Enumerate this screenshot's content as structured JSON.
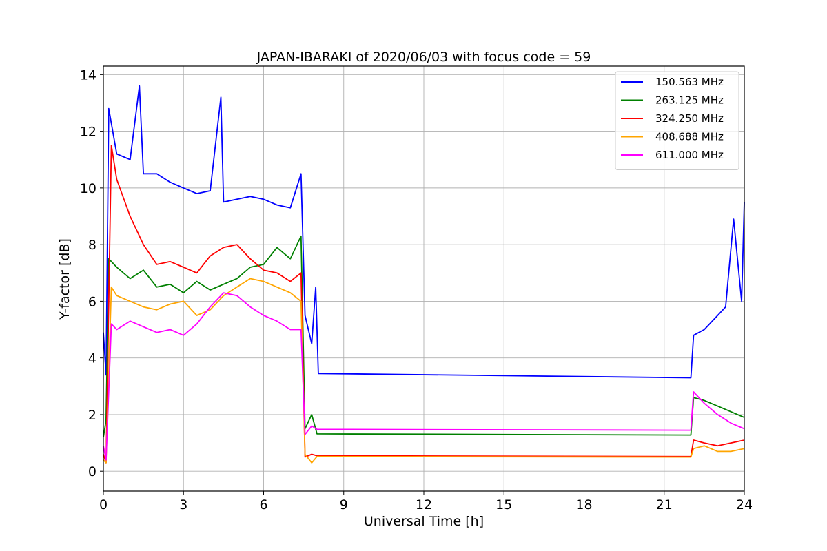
{
  "chart_data": {
    "type": "line",
    "title": "JAPAN-IBARAKI of 2020/06/03 with focus code = 59",
    "xlabel": "Universal Time [h]",
    "ylabel": "Y-factor [dB]",
    "xlim": [
      0,
      24
    ],
    "ylim": [
      -0.7,
      14.3
    ],
    "x_ticks": [
      0,
      3,
      6,
      9,
      12,
      15,
      18,
      21,
      24
    ],
    "y_ticks": [
      0,
      2,
      4,
      6,
      8,
      10,
      12,
      14
    ],
    "grid": true,
    "legend_position": "top-right",
    "series": [
      {
        "name": "150.563 MHz",
        "color": "#0000ff",
        "x": [
          0,
          0.1,
          0.2,
          0.5,
          1.0,
          1.35,
          1.5,
          2.0,
          2.5,
          3.0,
          3.5,
          4.0,
          4.4,
          4.5,
          5.0,
          5.5,
          6.0,
          6.5,
          7.0,
          7.4,
          7.55,
          7.8,
          7.95,
          8.05,
          22.0,
          22.1,
          22.5,
          23.0,
          23.3,
          23.6,
          23.9,
          24.0
        ],
        "values": [
          4.9,
          3.4,
          12.8,
          11.2,
          11.0,
          13.6,
          10.5,
          10.5,
          10.2,
          10.0,
          9.8,
          9.9,
          13.2,
          9.5,
          9.6,
          9.7,
          9.6,
          9.4,
          9.3,
          10.5,
          5.5,
          4.5,
          6.5,
          3.45,
          3.3,
          4.8,
          5.0,
          5.5,
          5.8,
          8.9,
          6.0,
          9.5
        ]
      },
      {
        "name": "263.125 MHz",
        "color": "#008000",
        "x": [
          0,
          0.1,
          0.2,
          0.5,
          1.0,
          1.5,
          2.0,
          2.5,
          3.0,
          3.5,
          4.0,
          4.5,
          5.0,
          5.5,
          6.0,
          6.5,
          7.0,
          7.4,
          7.55,
          7.8,
          8.0,
          22.0,
          22.1,
          22.5,
          23.0,
          23.5,
          24.0
        ],
        "values": [
          1.2,
          1.8,
          7.5,
          7.2,
          6.8,
          7.1,
          6.5,
          6.6,
          6.3,
          6.7,
          6.4,
          6.6,
          6.8,
          7.2,
          7.3,
          7.9,
          7.5,
          8.3,
          1.5,
          2.0,
          1.32,
          1.28,
          2.6,
          2.5,
          2.3,
          2.1,
          1.9
        ]
      },
      {
        "name": "324.250 MHz",
        "color": "#ff0000",
        "x": [
          0,
          0.1,
          0.3,
          0.5,
          1.0,
          1.5,
          2.0,
          2.5,
          3.0,
          3.5,
          4.0,
          4.5,
          5.0,
          5.5,
          6.0,
          6.5,
          7.0,
          7.4,
          7.55,
          7.8,
          8.0,
          22.0,
          22.1,
          22.5,
          23.0,
          23.5,
          24.0
        ],
        "values": [
          0.6,
          0.3,
          11.5,
          10.3,
          9.0,
          8.0,
          7.3,
          7.4,
          7.2,
          7.0,
          7.6,
          7.9,
          8.0,
          7.5,
          7.1,
          7.0,
          6.7,
          7.0,
          0.5,
          0.6,
          0.55,
          0.52,
          1.1,
          1.0,
          0.9,
          1.0,
          1.1
        ]
      },
      {
        "name": "408.688 MHz",
        "color": "#ffa500",
        "x": [
          0,
          0.1,
          0.3,
          0.5,
          1.0,
          1.5,
          2.0,
          2.5,
          3.0,
          3.5,
          4.0,
          4.5,
          5.0,
          5.5,
          6.0,
          6.5,
          7.0,
          7.4,
          7.55,
          7.8,
          8.0,
          22.0,
          22.1,
          22.5,
          23.0,
          23.5,
          24.0
        ],
        "values": [
          0.4,
          0.3,
          6.5,
          6.2,
          6.0,
          5.8,
          5.7,
          5.9,
          6.0,
          5.5,
          5.7,
          6.2,
          6.5,
          6.8,
          6.7,
          6.5,
          6.3,
          6.0,
          0.6,
          0.3,
          0.52,
          0.5,
          0.8,
          0.9,
          0.7,
          0.7,
          0.8
        ]
      },
      {
        "name": "611.000 MHz",
        "color": "#ff00ff",
        "x": [
          0,
          0.1,
          0.3,
          0.5,
          1.0,
          1.5,
          2.0,
          2.5,
          3.0,
          3.5,
          4.0,
          4.5,
          5.0,
          5.5,
          6.0,
          6.5,
          7.0,
          7.4,
          7.55,
          7.8,
          8.0,
          22.0,
          22.1,
          22.5,
          23.0,
          23.5,
          24.0
        ],
        "values": [
          0.9,
          0.4,
          5.2,
          5.0,
          5.3,
          5.1,
          4.9,
          5.0,
          4.8,
          5.2,
          5.8,
          6.3,
          6.2,
          5.8,
          5.5,
          5.3,
          5.0,
          5.0,
          1.3,
          1.6,
          1.48,
          1.45,
          2.8,
          2.4,
          2.0,
          1.7,
          1.5
        ]
      }
    ]
  }
}
